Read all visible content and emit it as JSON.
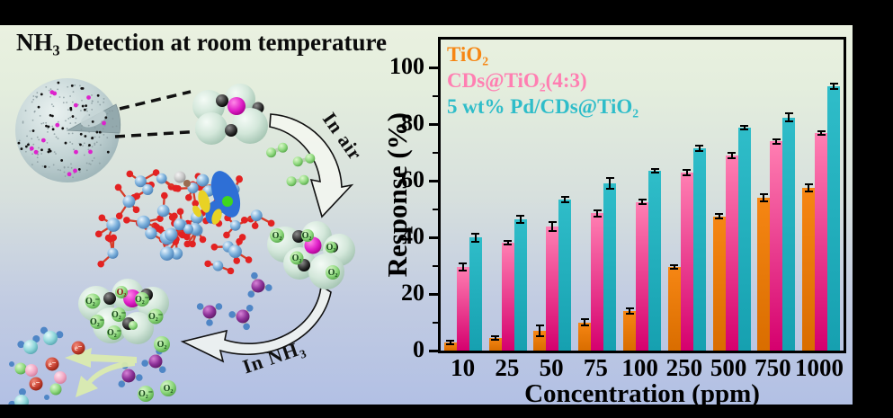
{
  "page": {
    "title": "NH₃ Detection at room temperature"
  },
  "schematic": {
    "labels": {
      "in_air": "In air",
      "in_nh3": "In NH₃",
      "o2": "O₂",
      "o2_minus": "O₂⁻",
      "electron": "e⁻"
    }
  },
  "colors": {
    "background_top": "#EAF1E0",
    "background_bottom": "#B2C0E4",
    "frame": "#000000"
  },
  "chart_data": {
    "type": "bar",
    "title": "",
    "xlabel": "Concentration (ppm)",
    "ylabel": "Response (%)",
    "categories": [
      "10",
      "25",
      "50",
      "75",
      "100",
      "250",
      "500",
      "750",
      "1000"
    ],
    "ylim": [
      0,
      110
    ],
    "yticks": [
      0,
      20,
      40,
      60,
      80,
      100
    ],
    "yminorticks": [
      10,
      30,
      50,
      70,
      90
    ],
    "grid": false,
    "legend_position": "top-left",
    "series": [
      {
        "name": "TiO₂",
        "color": "#F68613",
        "color_dark": "#D96D00",
        "values": [
          3,
          4.5,
          7,
          10,
          14,
          29.5,
          47.5,
          54,
          57.5
        ],
        "errors": [
          0.6,
          0.7,
          1.8,
          1.2,
          1.0,
          0.5,
          0.8,
          1.2,
          1.2
        ]
      },
      {
        "name": "CDs@TiO₂(4:3)",
        "color": "#FF7FB2",
        "color_dark": "#D5006E",
        "values": [
          29.5,
          38,
          44,
          48.5,
          52.5,
          63,
          69,
          74,
          77
        ],
        "errors": [
          1.2,
          0.4,
          1.6,
          1.2,
          0.8,
          1.0,
          1.0,
          0.8,
          0.6
        ]
      },
      {
        "name": "5 wt% Pd/CDs@TiO₂",
        "color": "#2FBDC9",
        "color_dark": "#16A0B0",
        "values": [
          40,
          46.5,
          53.5,
          59,
          63.5,
          71.5,
          79,
          82.5,
          93.5
        ],
        "errors": [
          1.4,
          1.2,
          1.0,
          1.9,
          0.6,
          1.0,
          0.5,
          1.4,
          1.0
        ]
      }
    ]
  }
}
